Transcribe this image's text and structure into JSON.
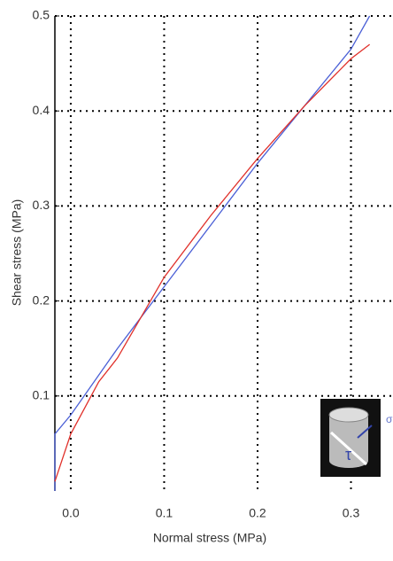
{
  "chart_data": {
    "type": "line",
    "xlabel": "Normal stress (MPa)",
    "ylabel": "Shear stress (MPa)",
    "xlim": [
      -0.017,
      0.345
    ],
    "ylim": [
      0,
      0.5
    ],
    "xticks": [
      {
        "value": 0,
        "label": "0.0"
      },
      0.1,
      0.2,
      0.3
    ],
    "yticks": [
      0.1,
      0.2,
      0.3,
      0.4,
      0.5
    ],
    "grid": true,
    "series": [
      {
        "color": "#4a5fd6",
        "x": [
          -0.017,
          -0.017,
          0.0,
          0.05,
          0.1,
          0.15,
          0.2,
          0.25,
          0.3,
          0.32
        ],
        "values": [
          0.0,
          0.06,
          0.08,
          0.15,
          0.215,
          0.28,
          0.345,
          0.405,
          0.465,
          0.5
        ]
      },
      {
        "color": "#e0302a",
        "x": [
          -0.017,
          0.0,
          0.03,
          0.05,
          0.1,
          0.15,
          0.2,
          0.25,
          0.3,
          0.32
        ],
        "values": [
          0.01,
          0.06,
          0.115,
          0.14,
          0.225,
          0.29,
          0.35,
          0.405,
          0.455,
          0.47
        ]
      }
    ],
    "annotations": [
      "σ",
      "τ"
    ]
  }
}
